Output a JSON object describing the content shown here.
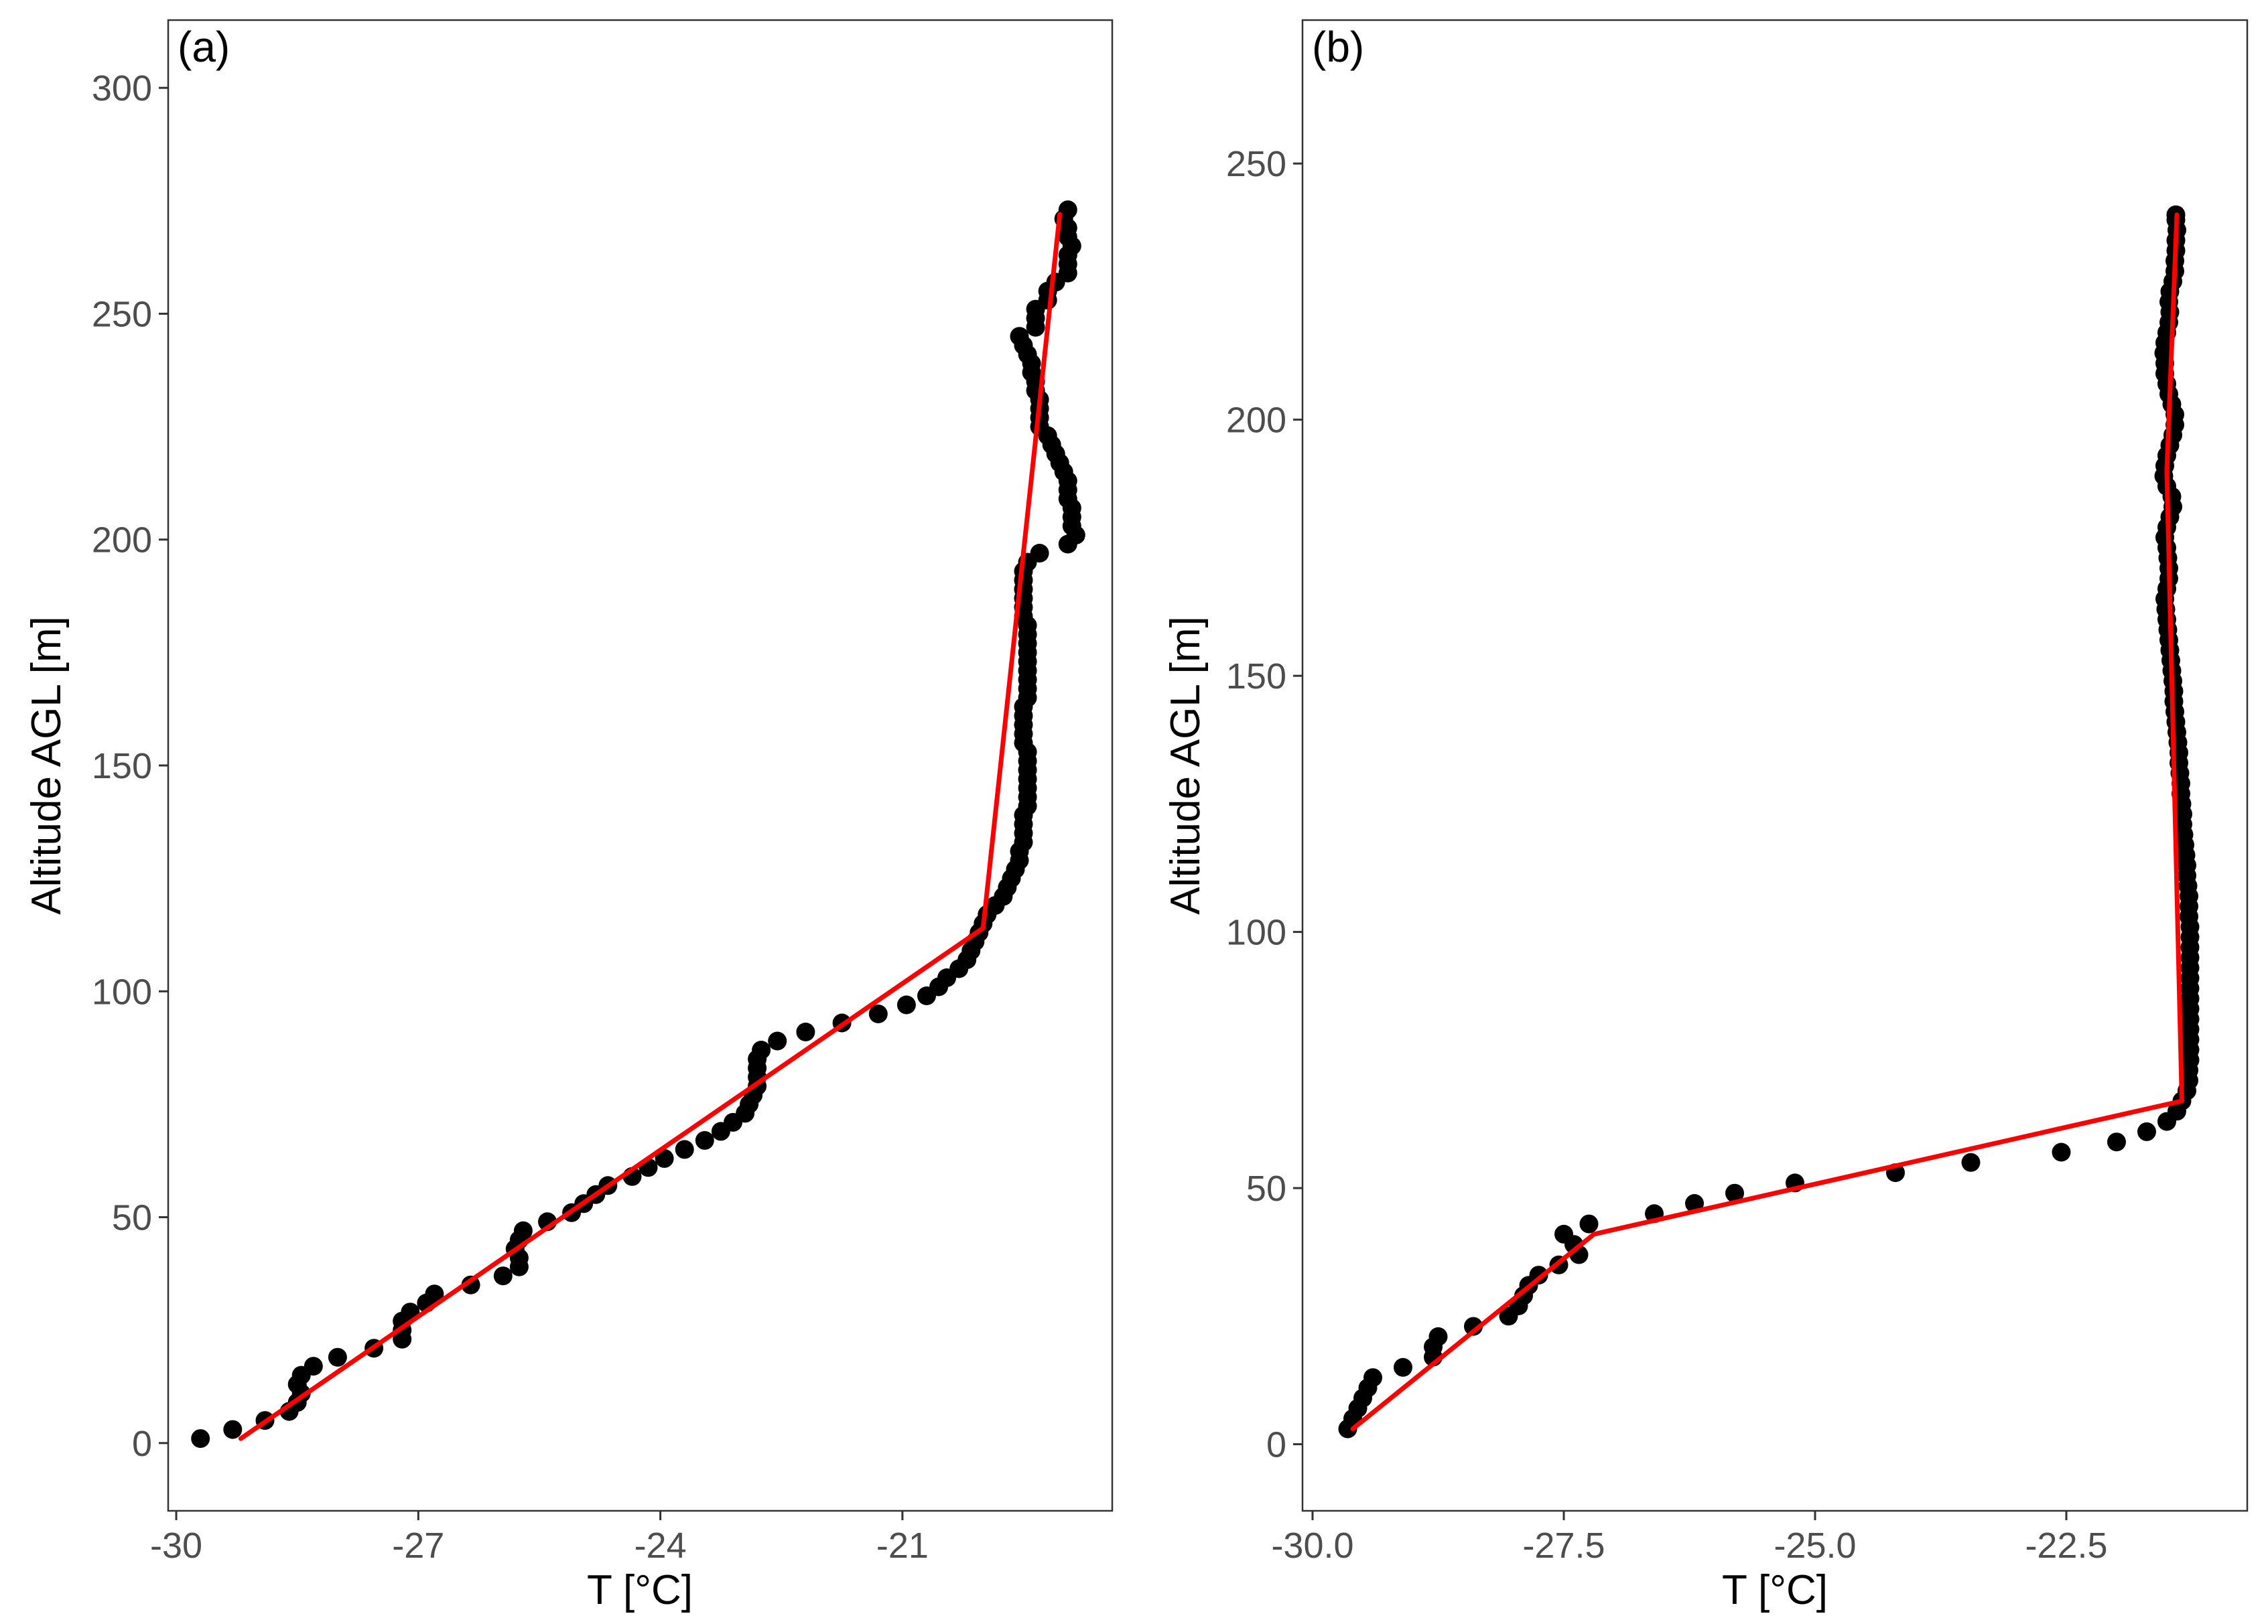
{
  "chart_data": [
    {
      "type": "scatter",
      "panel_label": "(a)",
      "xlabel": "T [°C]",
      "ylabel": "Altitude AGL [m]",
      "xlim": [
        -30.1,
        -18.4
      ],
      "ylim": [
        -15,
        315
      ],
      "xticks": [
        -30,
        -27,
        -24,
        -21
      ],
      "xtick_labels": [
        "-30",
        "-27",
        "-24",
        "-21"
      ],
      "yticks": [
        0,
        50,
        100,
        150,
        200,
        250,
        300
      ],
      "ytick_labels": [
        "0",
        "50",
        "100",
        "150",
        "200",
        "250",
        "300"
      ],
      "grid": false,
      "colors": {
        "points": "#000000",
        "fit": "#ff0000"
      },
      "series": [
        {
          "kind": "points",
          "points": [
            [
              -29.7,
              1
            ],
            [
              -29.3,
              3
            ],
            [
              -28.9,
              5
            ],
            [
              -28.6,
              7
            ],
            [
              -28.5,
              9
            ],
            [
              -28.45,
              11
            ],
            [
              -28.5,
              13
            ],
            [
              -28.45,
              15
            ],
            [
              -28.3,
              17
            ],
            [
              -28.0,
              19
            ],
            [
              -27.55,
              21
            ],
            [
              -27.2,
              23
            ],
            [
              -27.2,
              25
            ],
            [
              -27.2,
              27
            ],
            [
              -27.1,
              29
            ],
            [
              -26.9,
              31
            ],
            [
              -26.8,
              33
            ],
            [
              -26.35,
              35
            ],
            [
              -25.95,
              37
            ],
            [
              -25.75,
              39
            ],
            [
              -25.75,
              41
            ],
            [
              -25.8,
              43
            ],
            [
              -25.75,
              45
            ],
            [
              -25.7,
              47
            ],
            [
              -25.4,
              49
            ],
            [
              -25.1,
              51
            ],
            [
              -24.95,
              53
            ],
            [
              -24.8,
              55
            ],
            [
              -24.65,
              57
            ],
            [
              -24.35,
              59
            ],
            [
              -24.15,
              61
            ],
            [
              -23.95,
              63
            ],
            [
              -23.7,
              65
            ],
            [
              -23.45,
              67
            ],
            [
              -23.25,
              69
            ],
            [
              -23.1,
              71
            ],
            [
              -22.95,
              73
            ],
            [
              -22.9,
              75
            ],
            [
              -22.85,
              77
            ],
            [
              -22.8,
              79
            ],
            [
              -22.8,
              81
            ],
            [
              -22.8,
              83
            ],
            [
              -22.8,
              85
            ],
            [
              -22.75,
              87
            ],
            [
              -22.55,
              89
            ],
            [
              -22.2,
              91
            ],
            [
              -21.75,
              93
            ],
            [
              -21.3,
              95
            ],
            [
              -20.95,
              97
            ],
            [
              -20.7,
              99
            ],
            [
              -20.55,
              101
            ],
            [
              -20.45,
              103
            ],
            [
              -20.3,
              105
            ],
            [
              -20.2,
              107
            ],
            [
              -20.15,
              109
            ],
            [
              -20.1,
              111
            ],
            [
              -20.05,
              113
            ],
            [
              -20.0,
              115
            ],
            [
              -19.95,
              117
            ],
            [
              -19.85,
              119
            ],
            [
              -19.75,
              121
            ],
            [
              -19.7,
              123
            ],
            [
              -19.65,
              125
            ],
            [
              -19.6,
              127
            ],
            [
              -19.55,
              129
            ],
            [
              -19.55,
              131
            ],
            [
              -19.5,
              133
            ],
            [
              -19.5,
              135
            ],
            [
              -19.5,
              137
            ],
            [
              -19.5,
              139
            ],
            [
              -19.45,
              141
            ],
            [
              -19.45,
              143
            ],
            [
              -19.45,
              145
            ],
            [
              -19.45,
              147
            ],
            [
              -19.45,
              149
            ],
            [
              -19.45,
              151
            ],
            [
              -19.45,
              153
            ],
            [
              -19.5,
              155
            ],
            [
              -19.5,
              157
            ],
            [
              -19.5,
              159
            ],
            [
              -19.5,
              161
            ],
            [
              -19.5,
              163
            ],
            [
              -19.45,
              165
            ],
            [
              -19.45,
              167
            ],
            [
              -19.45,
              169
            ],
            [
              -19.45,
              171
            ],
            [
              -19.45,
              173
            ],
            [
              -19.45,
              175
            ],
            [
              -19.45,
              177
            ],
            [
              -19.45,
              179
            ],
            [
              -19.45,
              181
            ],
            [
              -19.5,
              183
            ],
            [
              -19.5,
              185
            ],
            [
              -19.5,
              187
            ],
            [
              -19.5,
              189
            ],
            [
              -19.5,
              191
            ],
            [
              -19.5,
              193
            ],
            [
              -19.45,
              195
            ],
            [
              -19.3,
              197
            ],
            [
              -18.95,
              199
            ],
            [
              -18.85,
              201
            ],
            [
              -18.9,
              203
            ],
            [
              -18.9,
              205
            ],
            [
              -18.9,
              207
            ],
            [
              -18.95,
              209
            ],
            [
              -18.95,
              211
            ],
            [
              -18.95,
              213
            ],
            [
              -19.0,
              215
            ],
            [
              -19.05,
              217
            ],
            [
              -19.1,
              219
            ],
            [
              -19.15,
              221
            ],
            [
              -19.2,
              223
            ],
            [
              -19.3,
              225
            ],
            [
              -19.3,
              227
            ],
            [
              -19.3,
              229
            ],
            [
              -19.3,
              231
            ],
            [
              -19.35,
              233
            ],
            [
              -19.35,
              235
            ],
            [
              -19.4,
              237
            ],
            [
              -19.4,
              239
            ],
            [
              -19.45,
              241
            ],
            [
              -19.5,
              243
            ],
            [
              -19.55,
              245
            ],
            [
              -19.35,
              247
            ],
            [
              -19.35,
              249
            ],
            [
              -19.35,
              251
            ],
            [
              -19.2,
              253
            ],
            [
              -19.2,
              255
            ],
            [
              -19.1,
              257
            ],
            [
              -18.95,
              259
            ],
            [
              -18.95,
              261
            ],
            [
              -18.95,
              263
            ],
            [
              -18.9,
              265
            ],
            [
              -18.95,
              267
            ],
            [
              -18.95,
              269
            ],
            [
              -19.0,
              271
            ],
            [
              -18.95,
              273
            ]
          ]
        },
        {
          "kind": "fit",
          "points": [
            [
              -29.2,
              1
            ],
            [
              -20.0,
              114
            ],
            [
              -19.05,
              272
            ]
          ]
        }
      ]
    },
    {
      "type": "scatter",
      "panel_label": "(b)",
      "xlabel": "T [°C]",
      "ylabel": "Altitude AGL [m]",
      "xlim": [
        -30.1,
        -20.7
      ],
      "ylim": [
        -13,
        278
      ],
      "xticks": [
        -30.0,
        -27.5,
        -25.0,
        -22.5
      ],
      "xtick_labels": [
        "-30.0",
        "-27.5",
        "-25.0",
        "-22.5"
      ],
      "yticks": [
        0,
        50,
        100,
        150,
        200,
        250
      ],
      "ytick_labels": [
        "0",
        "50",
        "100",
        "150",
        "200",
        "250"
      ],
      "grid": false,
      "colors": {
        "points": "#000000",
        "fit": "#ff0000"
      },
      "series": [
        {
          "kind": "points",
          "points": [
            [
              -29.65,
              3
            ],
            [
              -29.6,
              5
            ],
            [
              -29.55,
              7
            ],
            [
              -29.5,
              9
            ],
            [
              -29.45,
              11
            ],
            [
              -29.4,
              13
            ],
            [
              -29.1,
              15
            ],
            [
              -28.8,
              17
            ],
            [
              -28.8,
              19
            ],
            [
              -28.75,
              21
            ],
            [
              -28.4,
              23
            ],
            [
              -28.05,
              25
            ],
            [
              -27.95,
              27
            ],
            [
              -27.9,
              29
            ],
            [
              -27.85,
              31
            ],
            [
              -27.75,
              33
            ],
            [
              -27.55,
              35
            ],
            [
              -27.35,
              37
            ],
            [
              -27.4,
              39
            ],
            [
              -27.5,
              41
            ],
            [
              -27.25,
              43
            ],
            [
              -26.6,
              45
            ],
            [
              -26.2,
              47
            ],
            [
              -25.8,
              49
            ],
            [
              -25.2,
              51
            ],
            [
              -24.2,
              53
            ],
            [
              -23.45,
              55
            ],
            [
              -22.55,
              57
            ],
            [
              -22.0,
              59
            ],
            [
              -21.7,
              61
            ],
            [
              -21.5,
              63
            ],
            [
              -21.4,
              65
            ],
            [
              -21.35,
              67
            ],
            [
              -21.3,
              69
            ],
            [
              -21.28,
              71
            ],
            [
              -21.28,
              73
            ],
            [
              -21.27,
              75
            ],
            [
              -21.27,
              77
            ],
            [
              -21.27,
              79
            ],
            [
              -21.27,
              81
            ],
            [
              -21.27,
              83
            ],
            [
              -21.27,
              85
            ],
            [
              -21.27,
              87
            ],
            [
              -21.27,
              89
            ],
            [
              -21.27,
              91
            ],
            [
              -21.27,
              93
            ],
            [
              -21.27,
              95
            ],
            [
              -21.27,
              97
            ],
            [
              -21.27,
              99
            ],
            [
              -21.27,
              101
            ],
            [
              -21.28,
              103
            ],
            [
              -21.28,
              105
            ],
            [
              -21.28,
              107
            ],
            [
              -21.29,
              109
            ],
            [
              -21.3,
              111
            ],
            [
              -21.3,
              113
            ],
            [
              -21.31,
              115
            ],
            [
              -21.32,
              117
            ],
            [
              -21.33,
              119
            ],
            [
              -21.34,
              121
            ],
            [
              -21.34,
              123
            ],
            [
              -21.35,
              125
            ],
            [
              -21.36,
              127
            ],
            [
              -21.36,
              129
            ],
            [
              -21.37,
              131
            ],
            [
              -21.38,
              133
            ],
            [
              -21.38,
              135
            ],
            [
              -21.39,
              137
            ],
            [
              -21.4,
              139
            ],
            [
              -21.41,
              141
            ],
            [
              -21.42,
              143
            ],
            [
              -21.43,
              145
            ],
            [
              -21.43,
              147
            ],
            [
              -21.44,
              149
            ],
            [
              -21.45,
              151
            ],
            [
              -21.46,
              153
            ],
            [
              -21.47,
              155
            ],
            [
              -21.48,
              157
            ],
            [
              -21.49,
              159
            ],
            [
              -21.5,
              161
            ],
            [
              -21.51,
              163
            ],
            [
              -21.52,
              165
            ],
            [
              -21.5,
              167
            ],
            [
              -21.48,
              169
            ],
            [
              -21.48,
              171
            ],
            [
              -21.49,
              173
            ],
            [
              -21.5,
              175
            ],
            [
              -21.52,
              177
            ],
            [
              -21.5,
              179
            ],
            [
              -21.47,
              181
            ],
            [
              -21.44,
              183
            ],
            [
              -21.45,
              185
            ],
            [
              -21.5,
              187
            ],
            [
              -21.53,
              189
            ],
            [
              -21.52,
              191
            ],
            [
              -21.5,
              193
            ],
            [
              -21.47,
              195
            ],
            [
              -21.44,
              197
            ],
            [
              -21.42,
              199
            ],
            [
              -21.42,
              201
            ],
            [
              -21.45,
              203
            ],
            [
              -21.48,
              205
            ],
            [
              -21.5,
              207
            ],
            [
              -21.52,
              209
            ],
            [
              -21.52,
              211
            ],
            [
              -21.53,
              213
            ],
            [
              -21.52,
              215
            ],
            [
              -21.5,
              217
            ],
            [
              -21.48,
              219
            ],
            [
              -21.47,
              221
            ],
            [
              -21.48,
              223
            ],
            [
              -21.47,
              225
            ],
            [
              -21.44,
              227
            ],
            [
              -21.42,
              229
            ],
            [
              -21.42,
              231
            ],
            [
              -21.41,
              233
            ],
            [
              -21.41,
              235
            ],
            [
              -21.4,
              237
            ],
            [
              -21.41,
              239
            ],
            [
              -21.41,
              240
            ]
          ]
        },
        {
          "kind": "fit",
          "points": [
            [
              -29.6,
              3
            ],
            [
              -27.2,
              41
            ],
            [
              -21.35,
              67
            ],
            [
              -21.5,
              190
            ],
            [
              -21.4,
              240
            ]
          ]
        }
      ]
    }
  ]
}
